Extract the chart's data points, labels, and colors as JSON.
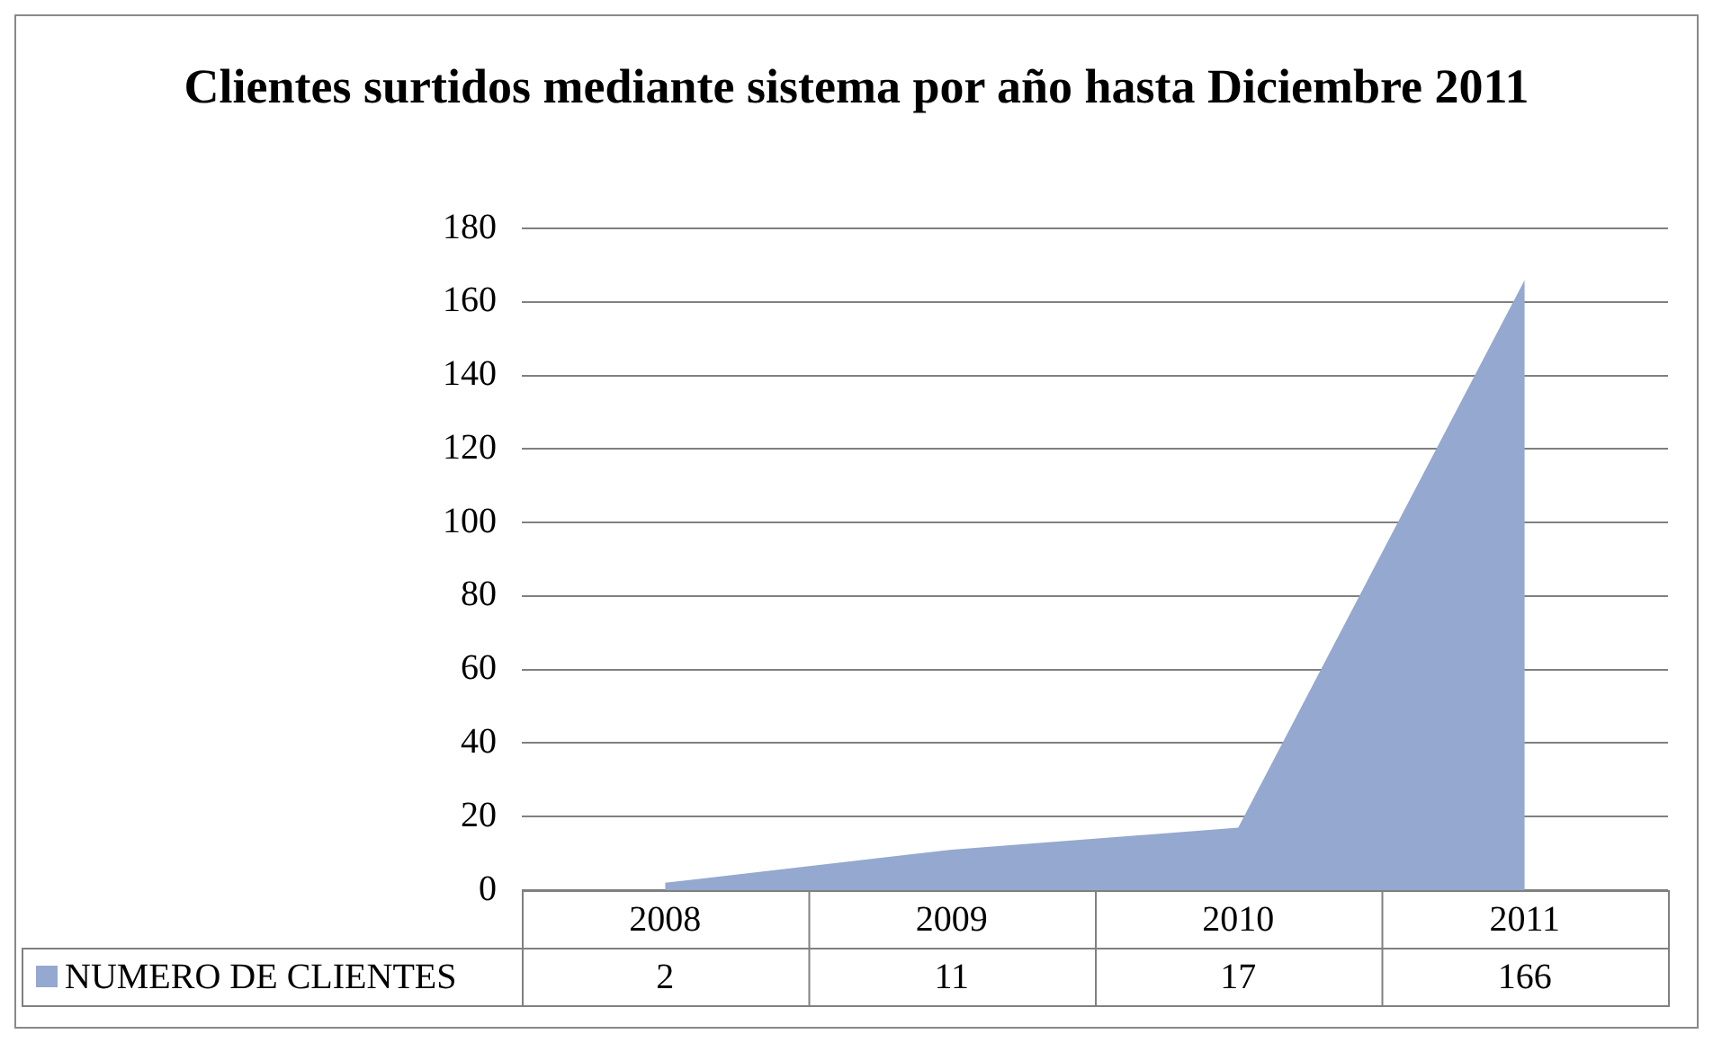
{
  "chart_data": {
    "type": "area",
    "title": "Clientes surtidos mediante sistema por año hasta Diciembre 2011",
    "categories": [
      "2008",
      "2009",
      "2010",
      "2011"
    ],
    "series": [
      {
        "name": "NUMERO DE CLIENTES",
        "color": "#94a8d0",
        "values": [
          2,
          11,
          17,
          166
        ]
      }
    ],
    "ylim": [
      0,
      180
    ],
    "yticks": [
      0,
      20,
      40,
      60,
      80,
      100,
      120,
      140,
      160,
      180
    ],
    "grid": "y",
    "legend": "bottom",
    "data_labels": true,
    "marker": "none"
  }
}
